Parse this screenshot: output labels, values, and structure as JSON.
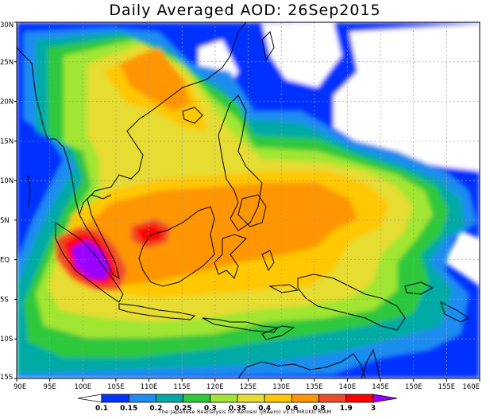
{
  "title": "Daily Averaged AOD: 26Sep2015",
  "credit": "The Japanese Reanalysis for Aerosol (JRAero) v1.0 MRI/KU RIAM",
  "map": {
    "lon_min": 90,
    "lon_max": 160,
    "lat_min": -15,
    "lat_max": 30,
    "lon_ticks": [
      {
        "value": 90,
        "label": "90E"
      },
      {
        "value": 95,
        "label": "95E"
      },
      {
        "value": 100,
        "label": "100E"
      },
      {
        "value": 105,
        "label": "105E"
      },
      {
        "value": 110,
        "label": "110E"
      },
      {
        "value": 115,
        "label": "115E"
      },
      {
        "value": 120,
        "label": "120E"
      },
      {
        "value": 125,
        "label": "125E"
      },
      {
        "value": 130,
        "label": "130E"
      },
      {
        "value": 135,
        "label": "135E"
      },
      {
        "value": 140,
        "label": "140E"
      },
      {
        "value": 145,
        "label": "145E"
      },
      {
        "value": 150,
        "label": "150E"
      },
      {
        "value": 155,
        "label": "155E"
      },
      {
        "value": 160,
        "label": "160E"
      }
    ],
    "lat_ticks": [
      {
        "value": 30,
        "label": "30N"
      },
      {
        "value": 25,
        "label": "25N"
      },
      {
        "value": 20,
        "label": "20N"
      },
      {
        "value": 15,
        "label": "15N"
      },
      {
        "value": 10,
        "label": "10N"
      },
      {
        "value": 5,
        "label": "5N"
      },
      {
        "value": 0,
        "label": "EQ"
      },
      {
        "value": -5,
        "label": "5S"
      },
      {
        "value": -10,
        "label": "10S"
      },
      {
        "value": -15,
        "label": "15S"
      }
    ]
  },
  "legend": {
    "labels": [
      "0.1",
      "0.15",
      "0.2",
      "0.25",
      "0.3",
      "0.35",
      "0.4",
      "0.6",
      "0.8",
      "1.9",
      "3"
    ],
    "colors": [
      "#ffffff",
      "#0033ff",
      "#1e8cf0",
      "#00aaa5",
      "#2ec83c",
      "#a0e632",
      "#e6dc32",
      "#ffc800",
      "#ff9600",
      "#f04b28",
      "#ff0000",
      "#9900ff"
    ]
  },
  "colors": {
    "background": "#ffffff",
    "coast": "#000000",
    "grid": "#999999"
  }
}
